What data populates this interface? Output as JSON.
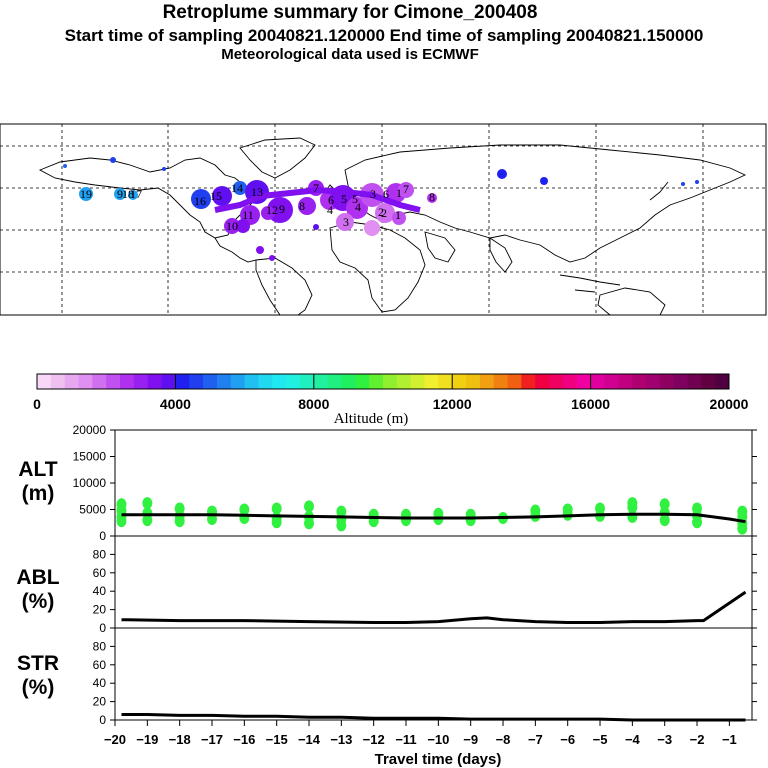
{
  "header": {
    "title": "Retroplume summary for Cimone_200408",
    "sampling": "Start time of sampling 20040821.120000     End time of sampling 20040821.150000",
    "met": "Meteorological data used is ECMWF"
  },
  "colorbar": {
    "label": "Altitude (m)",
    "ticks": [
      "0",
      "4000",
      "8000",
      "12000",
      "16000",
      "20000"
    ],
    "colors": [
      "#f8d8f8",
      "#f0c0f0",
      "#e8a8f0",
      "#e090f0",
      "#d070f0",
      "#c050f0",
      "#b030f0",
      "#9820f0",
      "#8010f0",
      "#6010f0",
      "#2020f0",
      "#2040f0",
      "#2060f0",
      "#2080f0",
      "#20a0f0",
      "#20c0f0",
      "#20d8f0",
      "#20e8f0",
      "#20f0e0",
      "#20f0c0",
      "#20f0a0",
      "#20f080",
      "#20f060",
      "#30f040",
      "#60f030",
      "#90f030",
      "#b0f030",
      "#d0f030",
      "#f0f030",
      "#f0e020",
      "#f0d010",
      "#f0c010",
      "#f0a010",
      "#f08010",
      "#f06010",
      "#f02020",
      "#f00040",
      "#f00060",
      "#f00080",
      "#f000a0",
      "#e000a0",
      "#d00090",
      "#c00080",
      "#b00070",
      "#a00070",
      "#900060",
      "#800060",
      "#700050",
      "#600040",
      "#500040"
    ]
  },
  "map_labels": {
    "items": [
      "19",
      "9",
      "18",
      "17",
      "16",
      "15",
      "14",
      "13",
      "12",
      "11",
      "10",
      "9",
      "8",
      "7",
      "6",
      "5",
      "4",
      "3",
      "2",
      "1",
      "1",
      "2",
      "3",
      "4",
      "5",
      "6",
      "7",
      "8"
    ]
  },
  "panels": {
    "alt": {
      "label_top": "ALT",
      "label_bottom": "(m)"
    },
    "abl": {
      "label_top": "ABL",
      "label_bottom": "(%)"
    },
    "str": {
      "label_top": "STR",
      "label_bottom": "(%)"
    },
    "xlabel": "Travel time (days)"
  },
  "chart_data": [
    {
      "type": "line",
      "title": "ALT",
      "ylabel": "ALT (m)",
      "xlabel": "Travel time (days)",
      "xlim": [
        -20,
        -0.3
      ],
      "ylim": [
        0,
        20000
      ],
      "yticks": [
        "0",
        "5000",
        "10000",
        "15000",
        "20000"
      ],
      "xticks": [
        "−20",
        "−19",
        "−18",
        "−17",
        "−16",
        "−15",
        "−14",
        "−13",
        "−12",
        "−11",
        "−10",
        "−9",
        "−8",
        "−7",
        "−6",
        "−5",
        "−4",
        "−3",
        "−2",
        "−1"
      ],
      "x": [
        -19.8,
        -19,
        -18,
        -17,
        -16,
        -15,
        -14,
        -13,
        -12,
        -11,
        -10,
        -9,
        -8,
        -7,
        -6,
        -5,
        -4,
        -3,
        -2,
        -1,
        -0.5
      ],
      "values": [
        4000,
        4000,
        4000,
        4000,
        3900,
        3800,
        3700,
        3600,
        3500,
        3400,
        3400,
        3400,
        3500,
        3600,
        3800,
        4000,
        4100,
        4100,
        4000,
        3200,
        2700
      ],
      "scatter_color": "#30f040",
      "scatter": [
        {
          "x": -19.8,
          "y": 2800
        },
        {
          "x": -19.8,
          "y": 3600
        },
        {
          "x": -19.8,
          "y": 4800
        },
        {
          "x": -19.8,
          "y": 6000
        },
        {
          "x": -19,
          "y": 3000
        },
        {
          "x": -19,
          "y": 4300
        },
        {
          "x": -19,
          "y": 6200
        },
        {
          "x": -18,
          "y": 2800
        },
        {
          "x": -18,
          "y": 3800
        },
        {
          "x": -18,
          "y": 5200
        },
        {
          "x": -17,
          "y": 3200
        },
        {
          "x": -17,
          "y": 4600
        },
        {
          "x": -16,
          "y": 3400
        },
        {
          "x": -16,
          "y": 5000
        },
        {
          "x": -15,
          "y": 2600
        },
        {
          "x": -15,
          "y": 3400
        },
        {
          "x": -15,
          "y": 5200
        },
        {
          "x": -14,
          "y": 2400
        },
        {
          "x": -14,
          "y": 3600
        },
        {
          "x": -14,
          "y": 5600
        },
        {
          "x": -13,
          "y": 2000
        },
        {
          "x": -13,
          "y": 3200
        },
        {
          "x": -13,
          "y": 4600
        },
        {
          "x": -12,
          "y": 2800
        },
        {
          "x": -12,
          "y": 4000
        },
        {
          "x": -11,
          "y": 3000
        },
        {
          "x": -11,
          "y": 4000
        },
        {
          "x": -10,
          "y": 3200
        },
        {
          "x": -10,
          "y": 4200
        },
        {
          "x": -9,
          "y": 3000
        },
        {
          "x": -9,
          "y": 4000
        },
        {
          "x": -8,
          "y": 3400
        },
        {
          "x": -7,
          "y": 3800
        },
        {
          "x": -7,
          "y": 4800
        },
        {
          "x": -6,
          "y": 4000
        },
        {
          "x": -6,
          "y": 5000
        },
        {
          "x": -5,
          "y": 3800
        },
        {
          "x": -5,
          "y": 5200
        },
        {
          "x": -4,
          "y": 3600
        },
        {
          "x": -4,
          "y": 5400
        },
        {
          "x": -4,
          "y": 6200
        },
        {
          "x": -3,
          "y": 3000
        },
        {
          "x": -3,
          "y": 4400
        },
        {
          "x": -3,
          "y": 6000
        },
        {
          "x": -2,
          "y": 2600
        },
        {
          "x": -2,
          "y": 3800
        },
        {
          "x": -2,
          "y": 5200
        },
        {
          "x": -0.6,
          "y": 1400
        },
        {
          "x": -0.6,
          "y": 2400
        },
        {
          "x": -0.6,
          "y": 3600
        },
        {
          "x": -0.6,
          "y": 4600
        }
      ]
    },
    {
      "type": "line",
      "title": "ABL",
      "ylabel": "ABL (%)",
      "xlim": [
        -20,
        -0.3
      ],
      "ylim": [
        0,
        100
      ],
      "yticks": [
        "0",
        "20",
        "40",
        "60",
        "80"
      ],
      "x": [
        -19.8,
        -18,
        -16,
        -14,
        -12,
        -11,
        -10,
        -9,
        -8.5,
        -8,
        -7,
        -6,
        -5,
        -4,
        -3,
        -2,
        -1.8,
        -0.5
      ],
      "values": [
        9,
        8,
        8,
        7,
        6,
        6,
        7,
        10,
        11,
        9,
        7,
        6,
        6,
        7,
        7,
        8,
        8,
        39
      ]
    },
    {
      "type": "line",
      "title": "STR",
      "ylabel": "STR (%)",
      "xlim": [
        -20,
        -0.3
      ],
      "ylim": [
        0,
        100
      ],
      "yticks": [
        "0",
        "20",
        "40",
        "60",
        "80"
      ],
      "x": [
        -19.8,
        -19,
        -18,
        -17,
        -16,
        -15,
        -14,
        -13,
        -12,
        -11,
        -10,
        -9,
        -8,
        -7,
        -6,
        -5,
        -4,
        -3,
        -2,
        -1,
        -0.5
      ],
      "values": [
        6,
        6,
        5,
        5,
        4,
        4,
        3,
        3,
        2,
        2,
        2,
        1,
        1,
        1,
        1,
        1,
        0,
        0,
        0,
        0,
        0
      ]
    }
  ]
}
